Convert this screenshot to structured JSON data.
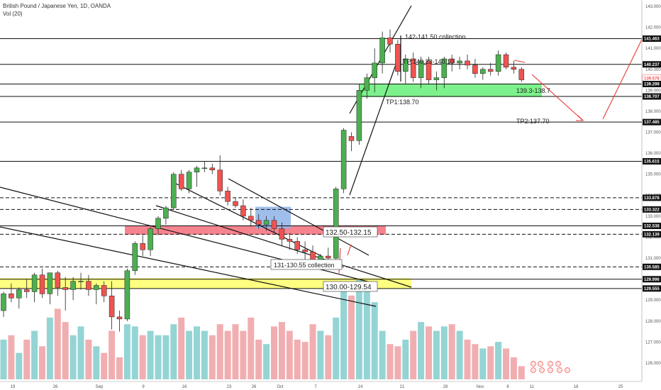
{
  "header": {
    "symbol_line": "British Pound / Japanese Yen, 1D, OANDA",
    "volume_line": "Vol (20)"
  },
  "chart_data": {
    "type": "candlestick",
    "y_axis": {
      "range": [
        125.5,
        143.2
      ],
      "ticks": [
        "143.000",
        "142.000",
        "141.000",
        "140.000",
        "139.000",
        "138.000",
        "137.000",
        "136.000",
        "135.000",
        "134.000",
        "133.000",
        "132.000",
        "131.000",
        "130.000",
        "129.000",
        "128.000",
        "127.000",
        "126.000"
      ],
      "tags": [
        {
          "label": "141.463",
          "value": 141.463,
          "dark": true
        },
        {
          "label": "140.237",
          "value": 140.237,
          "dark": true
        },
        {
          "label": "139.578",
          "value": 139.578,
          "dark": false
        },
        {
          "label": "139.299",
          "value": 139.299,
          "dark": true
        },
        {
          "label": "138.707",
          "value": 138.707,
          "dark": true
        },
        {
          "label": "137.485",
          "value": 137.485,
          "dark": true
        },
        {
          "label": "135.615",
          "value": 135.615,
          "dark": true
        },
        {
          "label": "133.878",
          "value": 133.878,
          "dark": true
        },
        {
          "label": "133.322",
          "value": 133.322,
          "dark": true
        },
        {
          "label": "132.538",
          "value": 132.538,
          "dark": true
        },
        {
          "label": "132.139",
          "value": 132.139,
          "dark": true
        },
        {
          "label": "130.585",
          "value": 130.585,
          "dark": true
        },
        {
          "label": "129.996",
          "value": 129.996,
          "dark": true
        },
        {
          "label": "129.555",
          "value": 129.555,
          "dark": true
        }
      ]
    },
    "x_axis": {
      "labels": [
        "19",
        "26",
        "Sep",
        "9",
        "16",
        "23",
        "26",
        "Oct",
        "7",
        "14",
        "21",
        "28",
        "Nov",
        "6",
        "11",
        "18",
        "25"
      ]
    },
    "levels": [
      {
        "value": 141.463,
        "style": "solid"
      },
      {
        "value": 140.237,
        "style": "solid"
      },
      {
        "value": 139.299,
        "style": "solid"
      },
      {
        "value": 138.707,
        "style": "solid"
      },
      {
        "value": 137.485,
        "style": "solid"
      },
      {
        "value": 135.615,
        "style": "solid"
      },
      {
        "value": 133.878,
        "style": "dashed"
      },
      {
        "value": 133.322,
        "style": "dashed"
      },
      {
        "value": 132.538,
        "style": "solid"
      },
      {
        "value": 132.139,
        "style": "dashed"
      },
      {
        "value": 130.585,
        "style": "dashed"
      },
      {
        "value": 129.996,
        "style": "solid"
      },
      {
        "value": 129.555,
        "style": "solid"
      }
    ],
    "zones": [
      {
        "name": "yellow",
        "y_top": 130.05,
        "y_bottom": 129.54,
        "color": "#ffff6b"
      },
      {
        "name": "red",
        "y_top": 132.56,
        "y_bottom": 132.12,
        "color": "#f56f7b"
      },
      {
        "name": "green",
        "y_top": 139.32,
        "y_bottom": 138.68,
        "color": "#66ee77"
      },
      {
        "name": "blue",
        "y_top": 133.45,
        "y_bottom": 132.42,
        "color": "#8fb3e8"
      }
    ],
    "annotations": {
      "yellow_zone": "130.00-129.54",
      "red_zone": "132.50-132.15",
      "collection_low": "131-130.55 collection",
      "collection_high": "142-141.50 collection",
      "green_zone": "139.3-138.7",
      "tp1": "TP1:138.70",
      "tp2": "TP2:137.70",
      "mid_label": "TP:140.23-140.10"
    },
    "candles": [
      {
        "open": 128.5,
        "high": 129.4,
        "low": 128.2,
        "close": 129.3
      },
      {
        "open": 129.3,
        "high": 129.8,
        "low": 128.9,
        "close": 129.1
      },
      {
        "open": 129.1,
        "high": 129.6,
        "low": 128.6,
        "close": 129.5
      },
      {
        "open": 129.5,
        "high": 130.0,
        "low": 129.1,
        "close": 129.4
      },
      {
        "open": 129.4,
        "high": 130.3,
        "low": 128.9,
        "close": 130.2
      },
      {
        "open": 130.2,
        "high": 130.5,
        "low": 129.1,
        "close": 129.3
      },
      {
        "open": 129.3,
        "high": 130.3,
        "low": 128.8,
        "close": 130.3
      },
      {
        "open": 130.3,
        "high": 130.4,
        "low": 129.2,
        "close": 129.6
      },
      {
        "open": 129.6,
        "high": 130.1,
        "low": 128.5,
        "close": 129.5
      },
      {
        "open": 129.5,
        "high": 130.1,
        "low": 129.0,
        "close": 129.9
      },
      {
        "open": 129.9,
        "high": 130.3,
        "low": 129.5,
        "close": 129.9
      },
      {
        "open": 129.9,
        "high": 130.2,
        "low": 129.2,
        "close": 129.5
      },
      {
        "open": 129.5,
        "high": 129.8,
        "low": 128.8,
        "close": 129.7
      },
      {
        "open": 129.7,
        "high": 129.9,
        "low": 128.9,
        "close": 129.2
      },
      {
        "open": 129.2,
        "high": 129.9,
        "low": 127.6,
        "close": 128.2
      },
      {
        "open": 128.2,
        "high": 128.5,
        "low": 127.5,
        "close": 128.1
      },
      {
        "open": 128.1,
        "high": 130.5,
        "low": 128.0,
        "close": 130.4
      },
      {
        "open": 130.4,
        "high": 131.8,
        "low": 130.2,
        "close": 131.7
      },
      {
        "open": 131.7,
        "high": 132.1,
        "low": 131.1,
        "close": 131.4
      },
      {
        "open": 131.4,
        "high": 132.5,
        "low": 131.1,
        "close": 132.4
      },
      {
        "open": 132.4,
        "high": 133.0,
        "low": 132.1,
        "close": 132.9
      },
      {
        "open": 132.9,
        "high": 133.5,
        "low": 132.6,
        "close": 133.4
      },
      {
        "open": 133.4,
        "high": 135.1,
        "low": 133.3,
        "close": 135.0
      },
      {
        "open": 135.0,
        "high": 135.2,
        "low": 134.2,
        "close": 134.3
      },
      {
        "open": 134.3,
        "high": 135.2,
        "low": 134.1,
        "close": 135.1
      },
      {
        "open": 135.1,
        "high": 135.4,
        "low": 134.4,
        "close": 135.3
      },
      {
        "open": 135.3,
        "high": 135.6,
        "low": 135.1,
        "close": 135.3
      },
      {
        "open": 135.3,
        "high": 135.5,
        "low": 135.0,
        "close": 135.2
      },
      {
        "open": 135.2,
        "high": 135.9,
        "low": 134.0,
        "close": 134.2
      },
      {
        "open": 134.2,
        "high": 134.4,
        "low": 133.5,
        "close": 133.7
      },
      {
        "open": 133.7,
        "high": 133.9,
        "low": 133.4,
        "close": 133.5
      },
      {
        "open": 133.5,
        "high": 133.8,
        "low": 132.8,
        "close": 133.0
      },
      {
        "open": 133.0,
        "high": 133.4,
        "low": 132.5,
        "close": 132.8
      },
      {
        "open": 132.8,
        "high": 133.1,
        "low": 132.4,
        "close": 132.6
      },
      {
        "open": 132.6,
        "high": 133.0,
        "low": 132.3,
        "close": 132.8
      },
      {
        "open": 132.8,
        "high": 133.0,
        "low": 132.2,
        "close": 132.4
      },
      {
        "open": 132.4,
        "high": 132.7,
        "low": 131.6,
        "close": 131.9
      },
      {
        "open": 131.9,
        "high": 132.2,
        "low": 131.4,
        "close": 131.8
      },
      {
        "open": 131.8,
        "high": 132.0,
        "low": 131.2,
        "close": 131.4
      },
      {
        "open": 131.4,
        "high": 131.8,
        "low": 130.9,
        "close": 131.3
      },
      {
        "open": 131.3,
        "high": 131.6,
        "low": 130.5,
        "close": 130.7
      },
      {
        "open": 130.7,
        "high": 131.2,
        "low": 130.5,
        "close": 131.1
      },
      {
        "open": 131.1,
        "high": 131.5,
        "low": 130.8,
        "close": 131.0
      },
      {
        "open": 131.0,
        "high": 134.4,
        "low": 130.9,
        "close": 134.3
      },
      {
        "open": 134.3,
        "high": 137.2,
        "low": 134.1,
        "close": 137.1
      },
      {
        "open": 136.8,
        "high": 137.0,
        "low": 136.1,
        "close": 136.6
      },
      {
        "open": 136.6,
        "high": 139.3,
        "low": 136.4,
        "close": 139.0
      },
      {
        "open": 139.0,
        "high": 139.8,
        "low": 138.6,
        "close": 139.6
      },
      {
        "open": 139.6,
        "high": 141.0,
        "low": 138.9,
        "close": 140.3
      },
      {
        "open": 140.3,
        "high": 141.8,
        "low": 139.8,
        "close": 141.5
      },
      {
        "open": 141.5,
        "high": 141.9,
        "low": 140.8,
        "close": 141.2
      },
      {
        "open": 141.2,
        "high": 141.4,
        "low": 139.7,
        "close": 139.9
      },
      {
        "open": 139.9,
        "high": 140.7,
        "low": 139.3,
        "close": 140.5
      },
      {
        "open": 140.5,
        "high": 140.8,
        "low": 139.4,
        "close": 139.6
      },
      {
        "open": 139.6,
        "high": 140.6,
        "low": 139.1,
        "close": 140.4
      },
      {
        "open": 140.4,
        "high": 140.6,
        "low": 139.3,
        "close": 139.5
      },
      {
        "open": 139.5,
        "high": 139.9,
        "low": 139.0,
        "close": 139.6
      },
      {
        "open": 139.6,
        "high": 140.6,
        "low": 139.1,
        "close": 140.5
      },
      {
        "open": 140.5,
        "high": 140.7,
        "low": 139.9,
        "close": 140.3
      },
      {
        "open": 140.3,
        "high": 140.6,
        "low": 140.0,
        "close": 140.4
      },
      {
        "open": 140.4,
        "high": 140.7,
        "low": 140.0,
        "close": 140.2
      },
      {
        "open": 140.2,
        "high": 140.5,
        "low": 139.6,
        "close": 139.8
      },
      {
        "open": 139.8,
        "high": 140.1,
        "low": 139.5,
        "close": 140.0
      },
      {
        "open": 140.0,
        "high": 140.3,
        "low": 139.7,
        "close": 139.9
      },
      {
        "open": 139.9,
        "high": 140.9,
        "low": 139.7,
        "close": 140.7
      },
      {
        "open": 140.7,
        "high": 140.8,
        "low": 140.0,
        "close": 140.1
      },
      {
        "open": 140.1,
        "high": 140.4,
        "low": 139.8,
        "close": 140.0
      },
      {
        "open": 140.0,
        "high": 140.1,
        "low": 139.4,
        "close": 139.5
      }
    ],
    "volumes": [
      18,
      20,
      12,
      18,
      22,
      15,
      28,
      32,
      26,
      20,
      24,
      18,
      15,
      12,
      22,
      10,
      25,
      24,
      20,
      22,
      20,
      20,
      25,
      28,
      22,
      24,
      22,
      20,
      25,
      22,
      25,
      22,
      28,
      18,
      16,
      24,
      26,
      22,
      18,
      17,
      25,
      22,
      20,
      28,
      42,
      38,
      45,
      40,
      35,
      22,
      16,
      15,
      18,
      22,
      26,
      24,
      22,
      24,
      25,
      22,
      18,
      16,
      14,
      15,
      17,
      14,
      10,
      6
    ]
  }
}
